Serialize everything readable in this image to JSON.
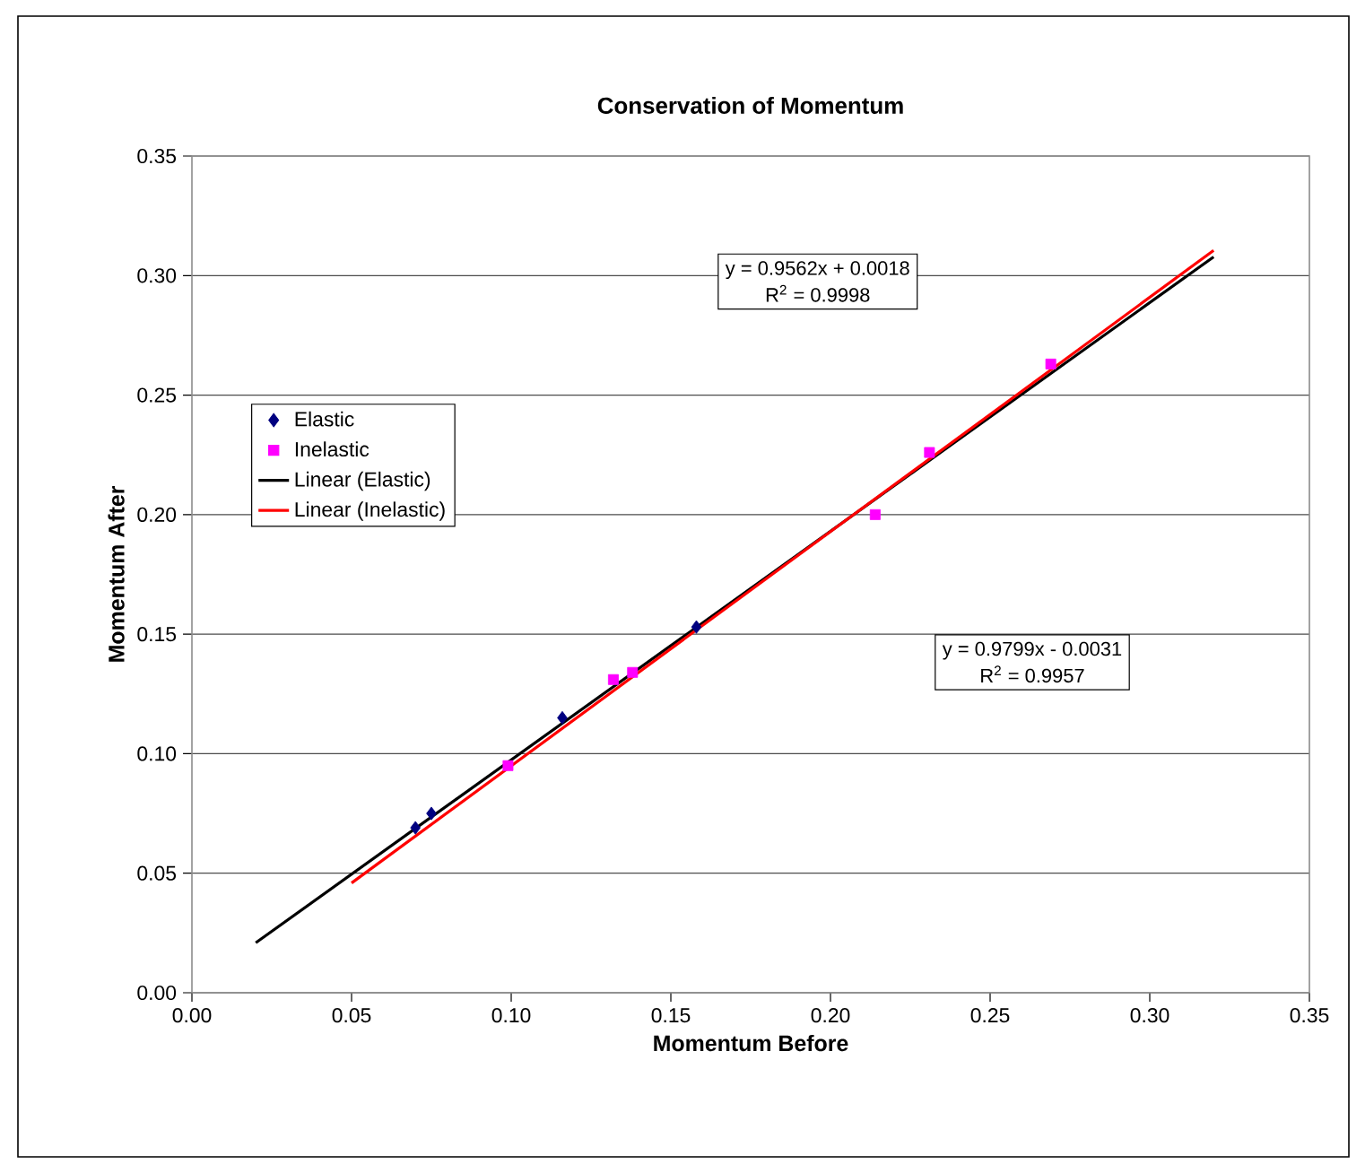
{
  "chart_data": {
    "type": "scatter",
    "title": "Conservation of Momentum",
    "xlabel": "Momentum Before",
    "ylabel": "Momentum After",
    "xlim": [
      0,
      0.35
    ],
    "ylim": [
      0,
      0.35
    ],
    "xticks": [
      {
        "value": 0,
        "label": "0.00"
      },
      {
        "value": 0.05,
        "label": "0.05"
      },
      {
        "value": 0.1,
        "label": "0.10"
      },
      {
        "value": 0.15,
        "label": "0.15"
      },
      {
        "value": 0.2,
        "label": "0.20"
      },
      {
        "value": 0.25,
        "label": "0.25"
      },
      {
        "value": 0.3,
        "label": "0.30"
      },
      {
        "value": 0.35,
        "label": "0.35"
      }
    ],
    "yticks": [
      {
        "value": 0,
        "label": "0.00"
      },
      {
        "value": 0.05,
        "label": "0.05"
      },
      {
        "value": 0.1,
        "label": "0.10"
      },
      {
        "value": 0.15,
        "label": "0.15"
      },
      {
        "value": 0.2,
        "label": "0.20"
      },
      {
        "value": 0.25,
        "label": "0.25"
      },
      {
        "value": 0.3,
        "label": "0.30"
      },
      {
        "value": 0.35,
        "label": "0.35"
      }
    ],
    "grid": "y",
    "legend": "left",
    "series": [
      {
        "name": "Elastic",
        "type": "scatter",
        "marker": "diamond",
        "color": "#000080",
        "x": [
          0.07,
          0.075,
          0.116,
          0.158
        ],
        "values": [
          0.069,
          0.075,
          0.115,
          0.153
        ]
      },
      {
        "name": "Inelastic",
        "type": "scatter",
        "marker": "square",
        "color": "#ff00ff",
        "x": [
          0.099,
          0.132,
          0.138,
          0.214,
          0.231,
          0.269
        ],
        "values": [
          0.095,
          0.131,
          0.134,
          0.2,
          0.226,
          0.263
        ]
      },
      {
        "name": "Linear (Elastic)",
        "type": "line",
        "color": "#000000",
        "x": [
          0.02,
          0.32
        ],
        "values": [
          0.0209,
          0.3078
        ]
      },
      {
        "name": "Linear (Inelastic)",
        "type": "line",
        "color": "#ff0000",
        "x": [
          0.05,
          0.32
        ],
        "values": [
          0.0459,
          0.3105
        ]
      }
    ],
    "annotations": [
      "y = 0.9562x + 0.0018",
      "R$^{2}$ = 0.9998",
      "y = 0.9799x - 0.0031",
      "R$^{2}$ = 0.9957"
    ]
  }
}
